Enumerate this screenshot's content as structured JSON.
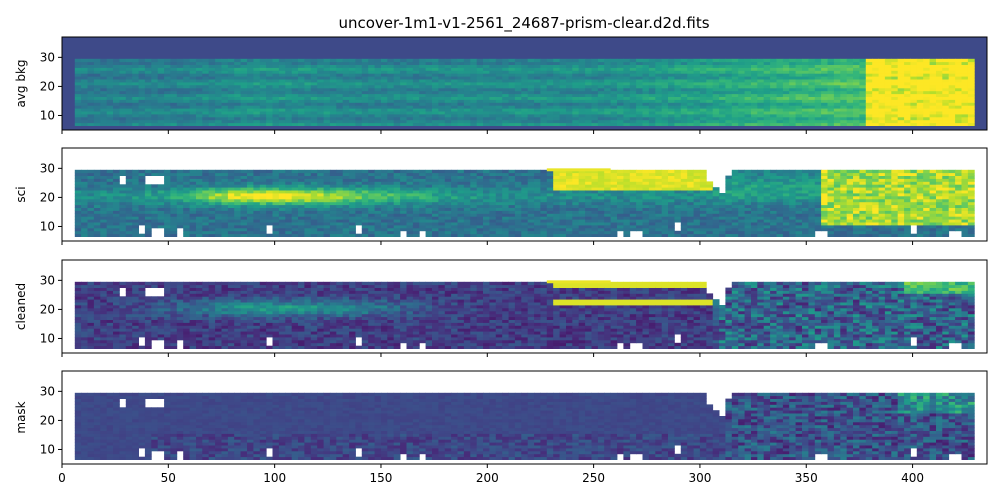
{
  "chart_data": {
    "type": "heatmap",
    "title": "uncover-1m1-v1-2561_24687-prism-clear.d2d.fits",
    "colormap": "viridis",
    "shared_x": true,
    "xlim": [
      0,
      435
    ],
    "ylim": [
      5,
      37
    ],
    "x_ticks": [
      0,
      50,
      100,
      150,
      200,
      250,
      300,
      350,
      400
    ],
    "y_ticks": [
      10,
      20,
      30
    ],
    "spectrum_extent": {
      "x": [
        6,
        428
      ],
      "y": [
        6.5,
        29
      ]
    },
    "panels": [
      {
        "name": "avg-bkg",
        "ylabel": "avg bkg",
        "background_color": "#3e4a89",
        "features": "smooth background rising from teal to saturated yellow at x > 380, horizontal banding"
      },
      {
        "name": "sci",
        "ylabel": "sci",
        "background_color": "#ffffff",
        "features": "bright trace near y≈20 around x≈80–140, saturated yellow at y≈22–29 for x≈228–305 and x≈355–428, gap near x≈310, masked white pixels"
      },
      {
        "name": "cleaned",
        "ylabel": "cleaned",
        "background_color": "#ffffff",
        "features": "dark purple residual with faint trace near y≈20, yellow bands at y≈22 and y≈28 for x≈228–305, masked white pixels"
      },
      {
        "name": "mask",
        "ylabel": "mask",
        "background_color": "#ffffff",
        "features": "mostly uniform dark blue, noisy purple/green region at x > 310, masked white pixels"
      }
    ]
  }
}
